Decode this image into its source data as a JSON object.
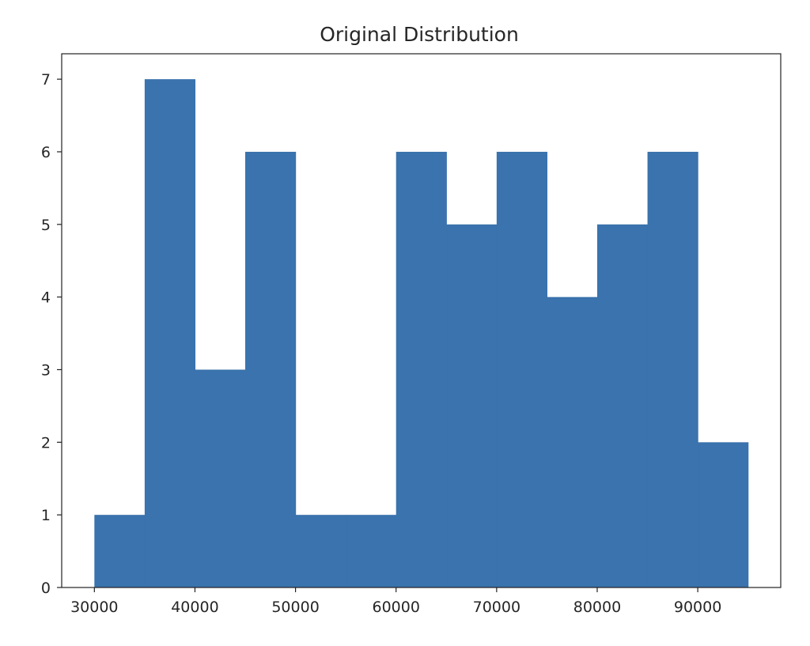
{
  "chart_data": {
    "type": "bar",
    "title": "Original Distribution",
    "xlabel": "",
    "ylabel": "",
    "bins": [
      {
        "start": 30000,
        "end": 35000,
        "count": 1
      },
      {
        "start": 35000,
        "end": 40000,
        "count": 7
      },
      {
        "start": 40000,
        "end": 45000,
        "count": 3
      },
      {
        "start": 45000,
        "end": 50000,
        "count": 6
      },
      {
        "start": 50000,
        "end": 55000,
        "count": 1
      },
      {
        "start": 55000,
        "end": 60000,
        "count": 1
      },
      {
        "start": 60000,
        "end": 65000,
        "count": 6
      },
      {
        "start": 65000,
        "end": 70000,
        "count": 5
      },
      {
        "start": 70000,
        "end": 75000,
        "count": 6
      },
      {
        "start": 75000,
        "end": 80000,
        "count": 4
      },
      {
        "start": 80000,
        "end": 85000,
        "count": 5
      },
      {
        "start": 85000,
        "end": 90000,
        "count": 6
      },
      {
        "start": 90000,
        "end": 95000,
        "count": 2
      }
    ],
    "xlim": [
      26750,
      98250
    ],
    "ylim": [
      0,
      7.35
    ],
    "x_ticks": [
      30000,
      40000,
      50000,
      60000,
      70000,
      80000,
      90000
    ],
    "x_tick_labels": [
      "30000",
      "40000",
      "50000",
      "60000",
      "70000",
      "80000",
      "90000"
    ],
    "y_ticks": [
      0,
      1,
      2,
      3,
      4,
      5,
      6,
      7
    ],
    "y_tick_labels": [
      "0",
      "1",
      "2",
      "3",
      "4",
      "5",
      "6",
      "7"
    ],
    "bar_color": "#3a73ad",
    "grid": false,
    "legend": "none"
  }
}
